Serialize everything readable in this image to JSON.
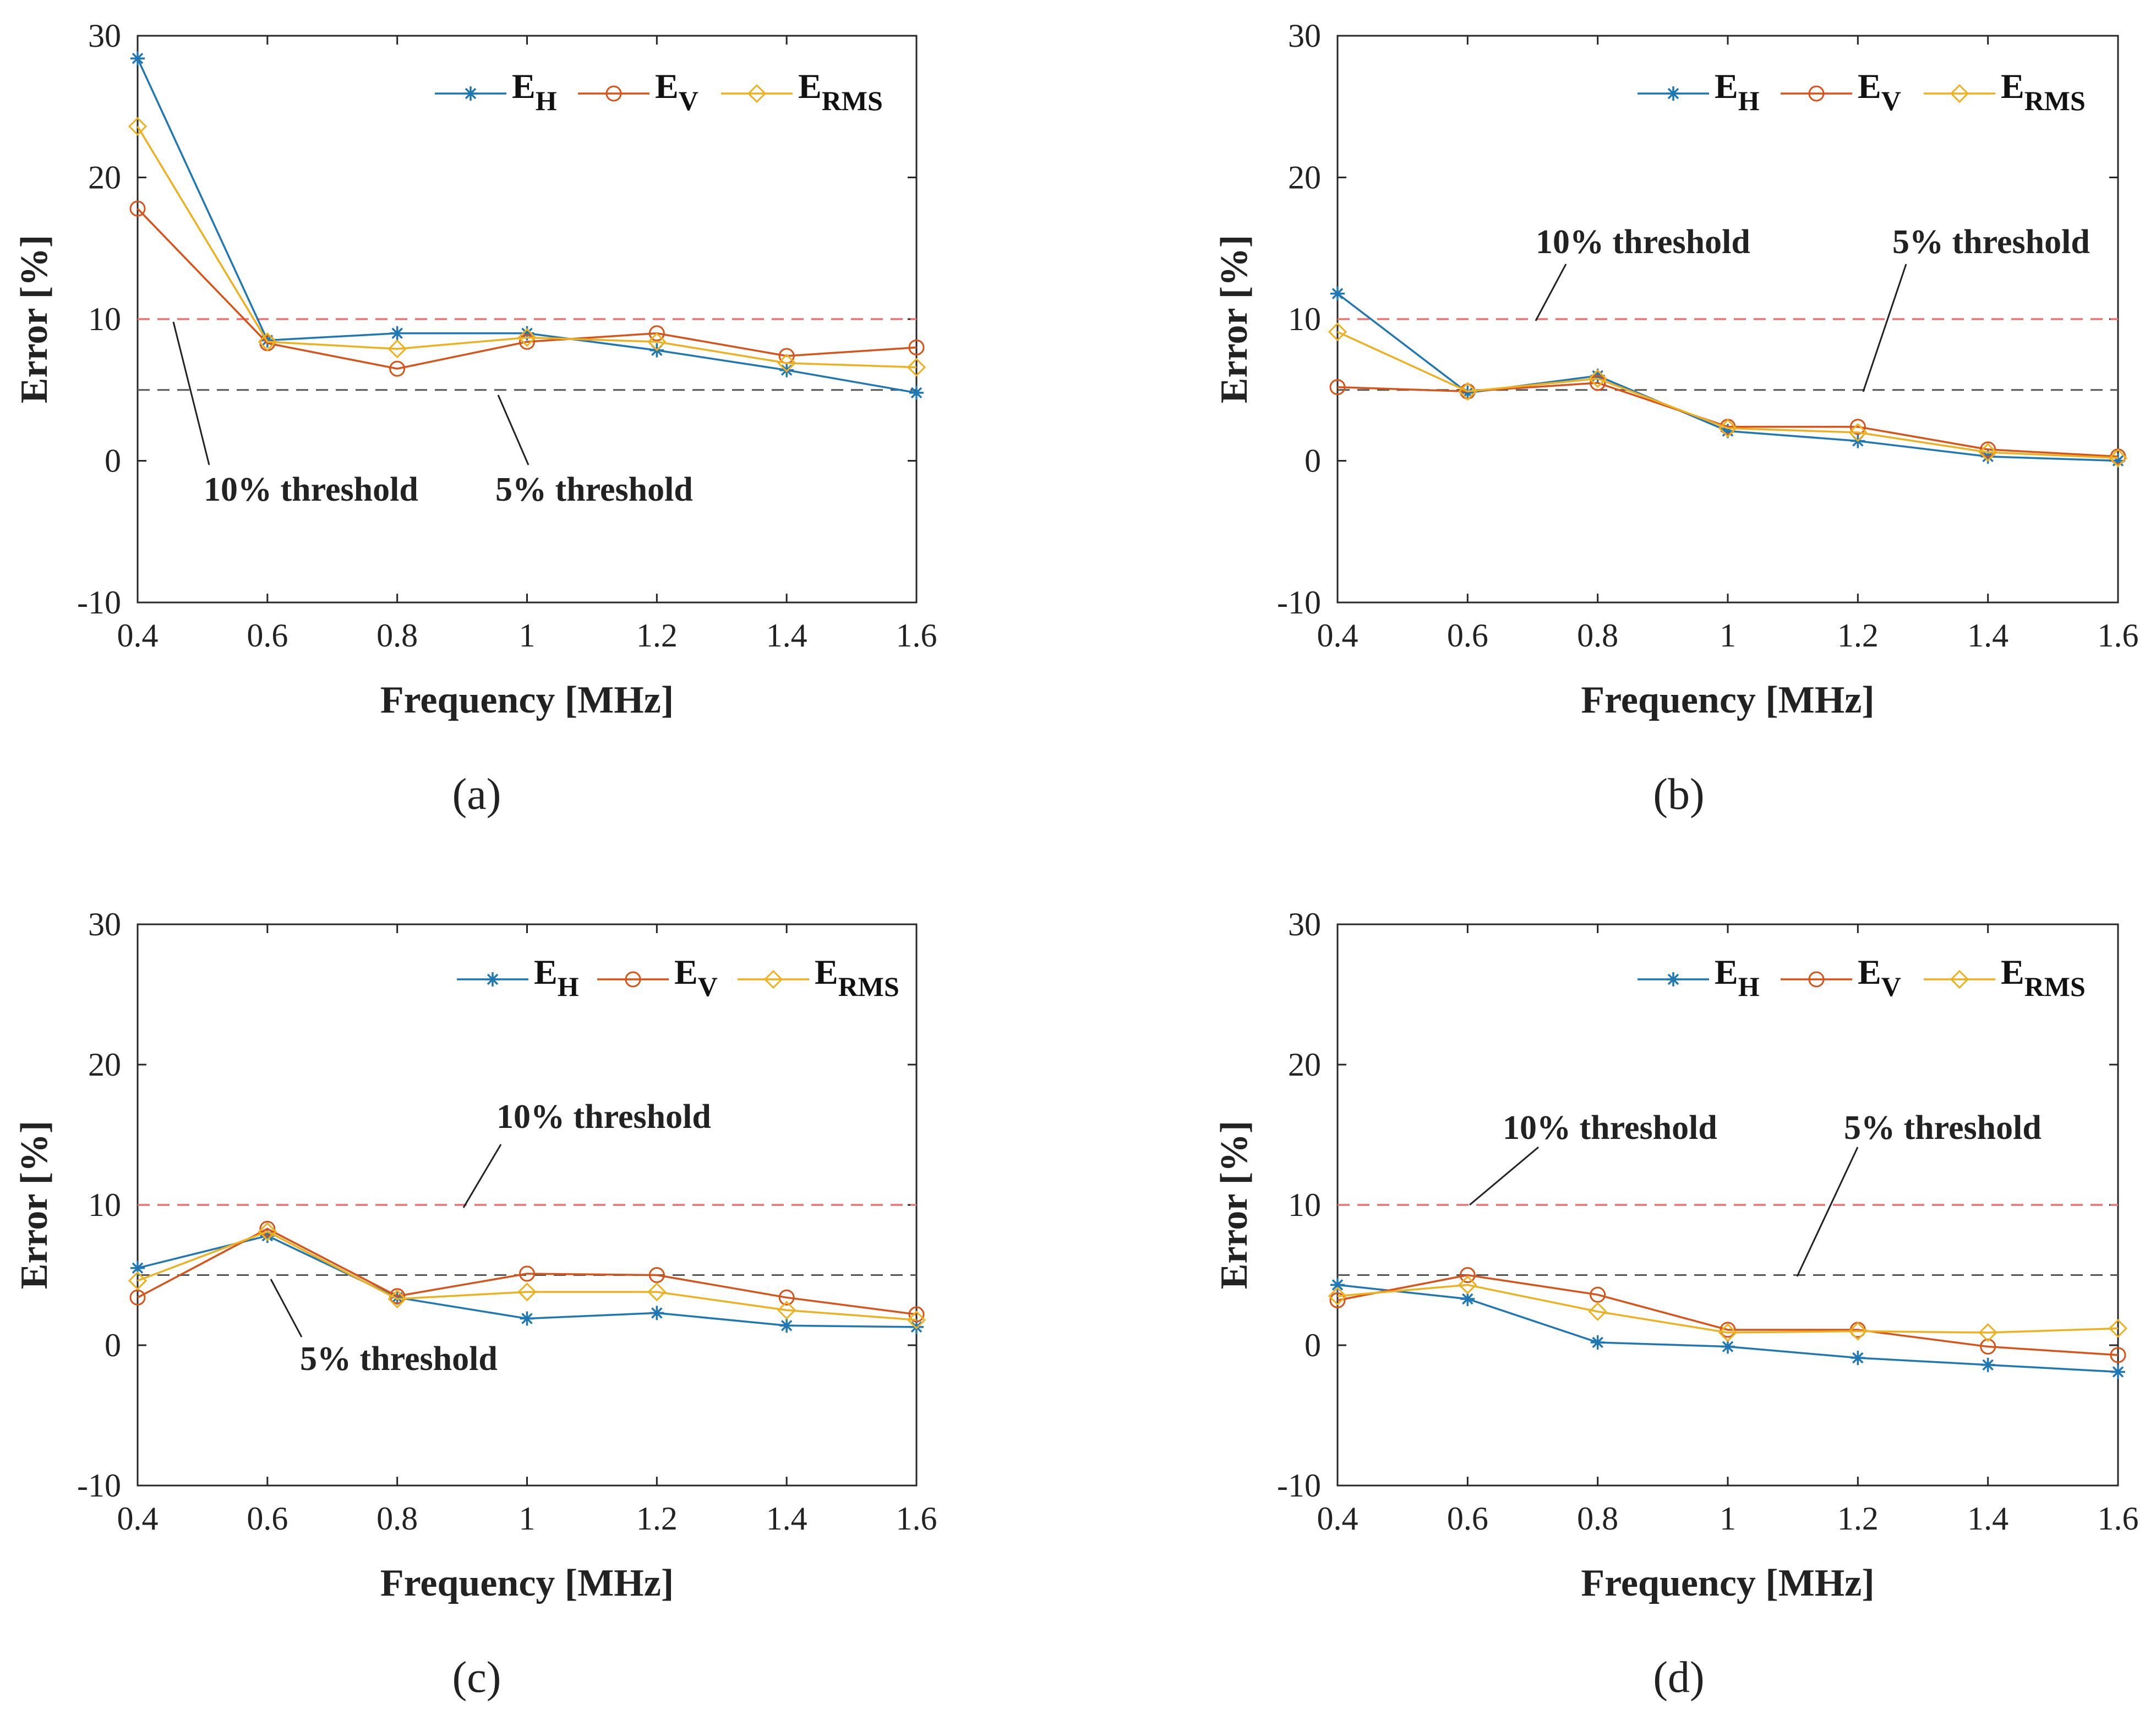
{
  "figure": {
    "colors": {
      "E_H": "#1f77b4",
      "E_V": "#d95319",
      "E_RMS": "#edb120",
      "threshold10": "#ec7373",
      "threshold5": "#555555"
    }
  },
  "chart_data": [
    {
      "id": "a",
      "type": "line",
      "caption": "(a)",
      "xlabel": "Frequency [MHz]",
      "ylabel": "Error [%]",
      "xlim": [
        0.4,
        1.6
      ],
      "ylim": [
        -10,
        30
      ],
      "x": [
        0.4,
        0.6,
        0.8,
        1.0,
        1.2,
        1.4,
        1.6
      ],
      "xticklabels": [
        "0.4",
        "0.6",
        "0.8",
        "1",
        "1.2",
        "1.4",
        "1.6"
      ],
      "yticklabels": [
        "-10",
        "0",
        "10",
        "20",
        "30"
      ],
      "legend": [
        {
          "key": "E_H",
          "base": "E",
          "sub": "H"
        },
        {
          "key": "E_V",
          "base": "E",
          "sub": "V"
        },
        {
          "key": "E_RMS",
          "base": "E",
          "sub": "RMS"
        }
      ],
      "series": [
        {
          "name": "E_H",
          "marker": "star",
          "values": [
            28.4,
            8.5,
            9.0,
            9.0,
            7.8,
            6.4,
            4.8
          ]
        },
        {
          "name": "E_V",
          "marker": "circle",
          "values": [
            17.8,
            8.3,
            6.5,
            8.4,
            9.0,
            7.4,
            8.0
          ]
        },
        {
          "name": "E_RMS",
          "marker": "diamond",
          "values": [
            23.6,
            8.4,
            7.9,
            8.7,
            8.4,
            6.9,
            6.6
          ]
        }
      ],
      "thresholds": [
        {
          "label": "10% threshold",
          "value": 10
        },
        {
          "label": "5% threshold",
          "value": 5
        }
      ]
    },
    {
      "id": "b",
      "type": "line",
      "caption": "(b)",
      "xlabel": "Frequency [MHz]",
      "ylabel": "Error [%]",
      "xlim": [
        0.4,
        1.6
      ],
      "ylim": [
        -10,
        30
      ],
      "x": [
        0.4,
        0.6,
        0.8,
        1.0,
        1.2,
        1.4,
        1.6
      ],
      "xticklabels": [
        "0.4",
        "0.6",
        "0.8",
        "1",
        "1.2",
        "1.4",
        "1.6"
      ],
      "yticklabels": [
        "-10",
        "0",
        "10",
        "20",
        "30"
      ],
      "legend": [
        {
          "key": "E_H",
          "base": "E",
          "sub": "H"
        },
        {
          "key": "E_V",
          "base": "E",
          "sub": "V"
        },
        {
          "key": "E_RMS",
          "base": "E",
          "sub": "RMS"
        }
      ],
      "series": [
        {
          "name": "E_H",
          "marker": "star",
          "values": [
            11.8,
            4.8,
            6.0,
            2.1,
            1.4,
            0.3,
            0.0
          ]
        },
        {
          "name": "E_V",
          "marker": "circle",
          "values": [
            5.2,
            4.9,
            5.5,
            2.4,
            2.4,
            0.8,
            0.3
          ]
        },
        {
          "name": "E_RMS",
          "marker": "diamond",
          "values": [
            9.1,
            4.9,
            5.8,
            2.3,
            2.0,
            0.6,
            0.2
          ]
        }
      ],
      "thresholds": [
        {
          "label": "10% threshold",
          "value": 10
        },
        {
          "label": "5% threshold",
          "value": 5
        }
      ]
    },
    {
      "id": "c",
      "type": "line",
      "caption": "(c)",
      "xlabel": "Frequency [MHz]",
      "ylabel": "Error [%]",
      "xlim": [
        0.4,
        1.6
      ],
      "ylim": [
        -10,
        30
      ],
      "x": [
        0.4,
        0.6,
        0.8,
        1.0,
        1.2,
        1.4,
        1.6
      ],
      "xticklabels": [
        "0.4",
        "0.6",
        "0.8",
        "1",
        "1.2",
        "1.4",
        "1.6"
      ],
      "yticklabels": [
        "-10",
        "0",
        "10",
        "20",
        "30"
      ],
      "legend": [
        {
          "key": "E_H",
          "base": "E",
          "sub": "H"
        },
        {
          "key": "E_V",
          "base": "E",
          "sub": "V"
        },
        {
          "key": "E_RMS",
          "base": "E",
          "sub": "RMS"
        }
      ],
      "series": [
        {
          "name": "E_H",
          "marker": "star",
          "values": [
            5.5,
            7.8,
            3.4,
            1.9,
            2.3,
            1.4,
            1.3
          ]
        },
        {
          "name": "E_V",
          "marker": "circle",
          "values": [
            3.4,
            8.3,
            3.5,
            5.1,
            5.0,
            3.4,
            2.2
          ]
        },
        {
          "name": "E_RMS",
          "marker": "diamond",
          "values": [
            4.6,
            8.1,
            3.3,
            3.8,
            3.8,
            2.5,
            1.8
          ]
        }
      ],
      "thresholds": [
        {
          "label": "10% threshold",
          "value": 10
        },
        {
          "label": "5% threshold",
          "value": 5
        }
      ]
    },
    {
      "id": "d",
      "type": "line",
      "caption": "(d)",
      "xlabel": "Frequency [MHz]",
      "ylabel": "Error [%]",
      "xlim": [
        0.4,
        1.6
      ],
      "ylim": [
        -10,
        30
      ],
      "x": [
        0.4,
        0.6,
        0.8,
        1.0,
        1.2,
        1.4,
        1.6
      ],
      "xticklabels": [
        "0.4",
        "0.6",
        "0.8",
        "1",
        "1.2",
        "1.4",
        "1.6"
      ],
      "yticklabels": [
        "-10",
        "0",
        "10",
        "20",
        "30"
      ],
      "legend": [
        {
          "key": "E_H",
          "base": "E",
          "sub": "H"
        },
        {
          "key": "E_V",
          "base": "E",
          "sub": "V"
        },
        {
          "key": "E_RMS",
          "base": "E",
          "sub": "RMS"
        }
      ],
      "series": [
        {
          "name": "E_H",
          "marker": "star",
          "values": [
            4.3,
            3.3,
            0.2,
            -0.1,
            -0.9,
            -1.4,
            -1.9
          ]
        },
        {
          "name": "E_V",
          "marker": "circle",
          "values": [
            3.2,
            5.0,
            3.6,
            1.1,
            1.1,
            -0.1,
            -0.7
          ]
        },
        {
          "name": "E_RMS",
          "marker": "diamond",
          "values": [
            3.5,
            4.3,
            2.4,
            0.9,
            1.0,
            0.9,
            1.2
          ]
        }
      ],
      "thresholds": [
        {
          "label": "10% threshold",
          "value": 10
        },
        {
          "label": "5% threshold",
          "value": 5
        }
      ]
    }
  ]
}
